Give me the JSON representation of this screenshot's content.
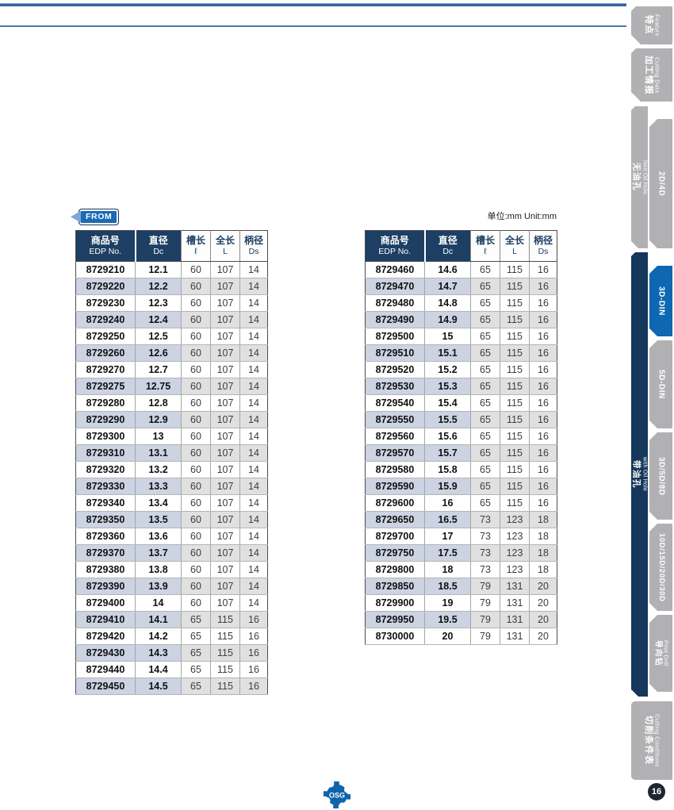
{
  "from_badge": "FROM",
  "unit_label": "单位:mm  Unit:mm",
  "logo_text": "OSG",
  "page_number": "16",
  "colors": {
    "header_navy": "#1c3f63",
    "active_tab_blue": "#0e67b1",
    "tab_gray": "#b1b1b4",
    "row_alt_blue": "#ccd3e2",
    "row_alt_gray": "#e0e0e0",
    "rule_blue": "#447ab0",
    "badge_blue": "#1a6ab5"
  },
  "tables": {
    "headers": [
      {
        "zh": "商品号",
        "en": "EDP No."
      },
      {
        "zh": "直径",
        "en": "Dc"
      },
      {
        "zh": "槽长",
        "en": "ℓ"
      },
      {
        "zh": "全长",
        "en": "L"
      },
      {
        "zh": "柄径",
        "en": "Ds"
      }
    ],
    "left_rows": [
      [
        "8729210",
        "12.1",
        "60",
        "107",
        "14"
      ],
      [
        "8729220",
        "12.2",
        "60",
        "107",
        "14"
      ],
      [
        "8729230",
        "12.3",
        "60",
        "107",
        "14"
      ],
      [
        "8729240",
        "12.4",
        "60",
        "107",
        "14"
      ],
      [
        "8729250",
        "12.5",
        "60",
        "107",
        "14"
      ],
      [
        "8729260",
        "12.6",
        "60",
        "107",
        "14"
      ],
      [
        "8729270",
        "12.7",
        "60",
        "107",
        "14"
      ],
      [
        "8729275",
        "12.75",
        "60",
        "107",
        "14"
      ],
      [
        "8729280",
        "12.8",
        "60",
        "107",
        "14"
      ],
      [
        "8729290",
        "12.9",
        "60",
        "107",
        "14"
      ],
      [
        "8729300",
        "13",
        "60",
        "107",
        "14"
      ],
      [
        "8729310",
        "13.1",
        "60",
        "107",
        "14"
      ],
      [
        "8729320",
        "13.2",
        "60",
        "107",
        "14"
      ],
      [
        "8729330",
        "13.3",
        "60",
        "107",
        "14"
      ],
      [
        "8729340",
        "13.4",
        "60",
        "107",
        "14"
      ],
      [
        "8729350",
        "13.5",
        "60",
        "107",
        "14"
      ],
      [
        "8729360",
        "13.6",
        "60",
        "107",
        "14"
      ],
      [
        "8729370",
        "13.7",
        "60",
        "107",
        "14"
      ],
      [
        "8729380",
        "13.8",
        "60",
        "107",
        "14"
      ],
      [
        "8729390",
        "13.9",
        "60",
        "107",
        "14"
      ],
      [
        "8729400",
        "14",
        "60",
        "107",
        "14"
      ],
      [
        "8729410",
        "14.1",
        "65",
        "115",
        "16"
      ],
      [
        "8729420",
        "14.2",
        "65",
        "115",
        "16"
      ],
      [
        "8729430",
        "14.3",
        "65",
        "115",
        "16"
      ],
      [
        "8729440",
        "14.4",
        "65",
        "115",
        "16"
      ],
      [
        "8729450",
        "14.5",
        "65",
        "115",
        "16"
      ]
    ],
    "right_rows": [
      [
        "8729460",
        "14.6",
        "65",
        "115",
        "16"
      ],
      [
        "8729470",
        "14.7",
        "65",
        "115",
        "16"
      ],
      [
        "8729480",
        "14.8",
        "65",
        "115",
        "16"
      ],
      [
        "8729490",
        "14.9",
        "65",
        "115",
        "16"
      ],
      [
        "8729500",
        "15",
        "65",
        "115",
        "16"
      ],
      [
        "8729510",
        "15.1",
        "65",
        "115",
        "16"
      ],
      [
        "8729520",
        "15.2",
        "65",
        "115",
        "16"
      ],
      [
        "8729530",
        "15.3",
        "65",
        "115",
        "16"
      ],
      [
        "8729540",
        "15.4",
        "65",
        "115",
        "16"
      ],
      [
        "8729550",
        "15.5",
        "65",
        "115",
        "16"
      ],
      [
        "8729560",
        "15.6",
        "65",
        "115",
        "16"
      ],
      [
        "8729570",
        "15.7",
        "65",
        "115",
        "16"
      ],
      [
        "8729580",
        "15.8",
        "65",
        "115",
        "16"
      ],
      [
        "8729590",
        "15.9",
        "65",
        "115",
        "16"
      ],
      [
        "8729600",
        "16",
        "65",
        "115",
        "16"
      ],
      [
        "8729650",
        "16.5",
        "73",
        "123",
        "18"
      ],
      [
        "8729700",
        "17",
        "73",
        "123",
        "18"
      ],
      [
        "8729750",
        "17.5",
        "73",
        "123",
        "18"
      ],
      [
        "8729800",
        "18",
        "73",
        "123",
        "18"
      ],
      [
        "8729850",
        "18.5",
        "79",
        "131",
        "20"
      ],
      [
        "8729900",
        "19",
        "79",
        "131",
        "20"
      ],
      [
        "8729950",
        "19.5",
        "79",
        "131",
        "20"
      ],
      [
        "8730000",
        "20",
        "79",
        "131",
        "20"
      ]
    ]
  },
  "sidebar": {
    "feature": {
      "zh": "特点",
      "en": "Feature"
    },
    "cutting_data": {
      "zh": "加工情报",
      "en": "Cutting Data"
    },
    "non_oil_group": {
      "zh": "无油孔",
      "en": "Non Oil Hole"
    },
    "tab_2d4d": "2D/4D",
    "tab_3ddin": "3D-DIN",
    "tab_5ddin": "5D-DIN",
    "oil_group": {
      "zh": "带油孔",
      "en": "with Oil Hole"
    },
    "tab_3d5d8d": "3D/5D/8D",
    "tab_10d": "10D/15D/20D/30D",
    "pilot": {
      "zh": "导向钻",
      "en": "Pilot Drill"
    },
    "cutting_conditions": {
      "zh": "切削条件表",
      "en": "Cutting Conditions"
    }
  }
}
